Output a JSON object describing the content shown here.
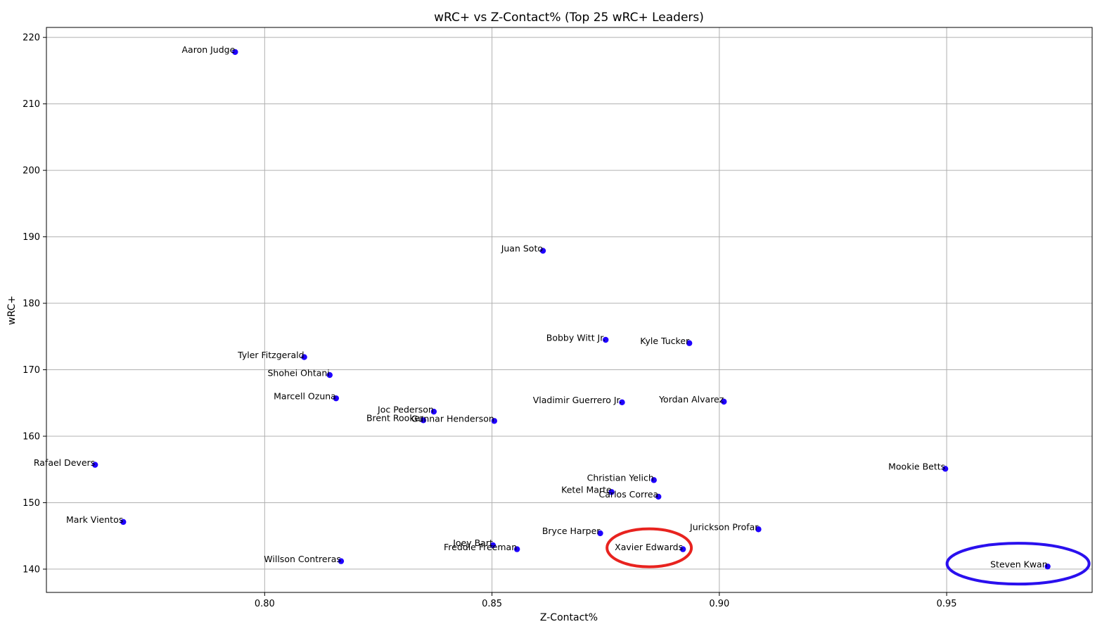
{
  "chart_data": {
    "type": "scatter",
    "title": "wRC+ vs Z-Contact% (Top 25 wRC+ Leaders)",
    "xlabel": "Z-Contact%",
    "ylabel": "wRC+",
    "xlim": [
      0.752,
      0.982
    ],
    "ylim": [
      136.5,
      221.5
    ],
    "xticks": [
      0.8,
      0.85,
      0.9,
      0.95
    ],
    "xtick_labels": [
      "0.80",
      "0.85",
      "0.90",
      "0.95"
    ],
    "yticks": [
      140,
      150,
      160,
      170,
      180,
      190,
      200,
      210,
      220
    ],
    "ytick_labels": [
      "140",
      "150",
      "160",
      "170",
      "180",
      "190",
      "200",
      "210",
      "220"
    ],
    "grid": true,
    "point_color": "#1f00ff",
    "highlight_colors": {
      "red": "#e8231f",
      "blue": "#2a10ee"
    },
    "points": [
      {
        "name": "Aaron Judge",
        "x": 0.7935,
        "y": 217.8
      },
      {
        "name": "Juan Soto",
        "x": 0.8612,
        "y": 187.9
      },
      {
        "name": "Bobby Witt Jr.",
        "x": 0.875,
        "y": 174.5
      },
      {
        "name": "Kyle Tucker",
        "x": 0.8934,
        "y": 174.0
      },
      {
        "name": "Tyler Fitzgerald",
        "x": 0.8087,
        "y": 171.9
      },
      {
        "name": "Shohei Ohtani",
        "x": 0.8143,
        "y": 169.2
      },
      {
        "name": "Marcell Ozuna",
        "x": 0.8157,
        "y": 165.7
      },
      {
        "name": "Vladimir Guerrero Jr.",
        "x": 0.8786,
        "y": 165.1
      },
      {
        "name": "Yordan Alvarez",
        "x": 0.901,
        "y": 165.2
      },
      {
        "name": "Joc Pederson",
        "x": 0.8372,
        "y": 163.7
      },
      {
        "name": "Brent Rooker",
        "x": 0.8349,
        "y": 162.4
      },
      {
        "name": "Gunnar Henderson",
        "x": 0.8505,
        "y": 162.3
      },
      {
        "name": "Rafael Devers",
        "x": 0.7627,
        "y": 155.7
      },
      {
        "name": "Mookie Betts",
        "x": 0.9497,
        "y": 155.1
      },
      {
        "name": "Christian Yelich",
        "x": 0.8856,
        "y": 153.4
      },
      {
        "name": "Ketel Marte",
        "x": 0.8763,
        "y": 151.6
      },
      {
        "name": "Carlos Correa",
        "x": 0.8866,
        "y": 150.9
      },
      {
        "name": "Mark Vientos",
        "x": 0.7689,
        "y": 147.1
      },
      {
        "name": "Jurickson Profar",
        "x": 0.9086,
        "y": 146.0
      },
      {
        "name": "Bryce Harper",
        "x": 0.8738,
        "y": 145.4
      },
      {
        "name": "Joey Bart",
        "x": 0.8502,
        "y": 143.6
      },
      {
        "name": "Freddie Freeman",
        "x": 0.8555,
        "y": 143.0
      },
      {
        "name": "Xavier Edwards",
        "x": 0.892,
        "y": 143.0,
        "highlight": "red"
      },
      {
        "name": "Willson Contreras",
        "x": 0.8168,
        "y": 141.2
      },
      {
        "name": "Steven Kwan",
        "x": 0.9722,
        "y": 140.4,
        "highlight": "blue"
      }
    ]
  }
}
